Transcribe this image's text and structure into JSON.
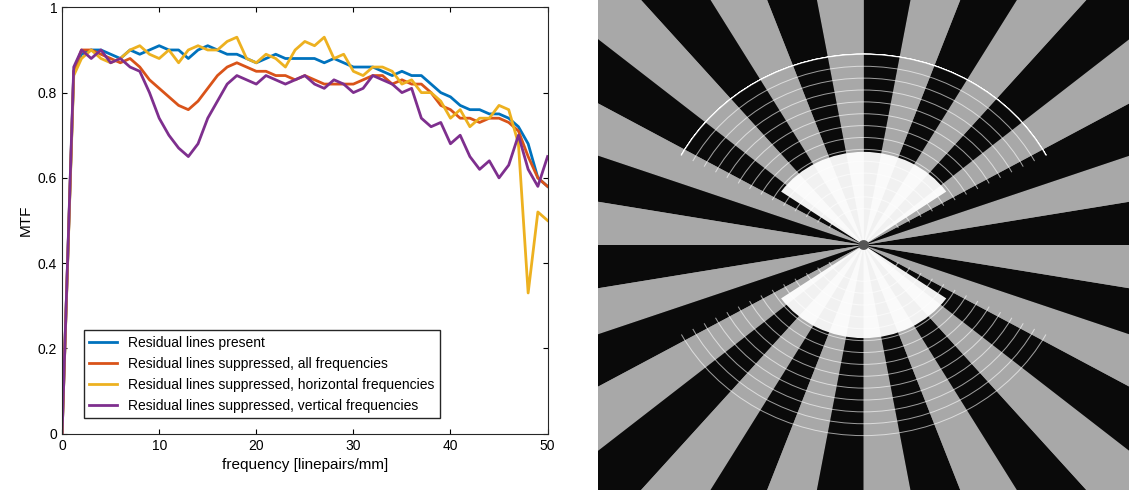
{
  "chart_data": {
    "type": "line",
    "xlabel": "frequency [linepairs/mm]",
    "ylabel": "MTF",
    "xlim": [
      0,
      50
    ],
    "ylim": [
      0,
      1
    ],
    "xticks": [
      0,
      10,
      20,
      30,
      40,
      50
    ],
    "yticks": [
      0,
      0.2,
      0.4,
      0.6,
      0.8,
      1
    ],
    "grid": false,
    "legend": "lower left",
    "x": [
      0,
      1.2,
      2,
      3,
      4,
      5,
      6,
      7,
      8,
      9,
      10,
      11,
      12,
      13,
      14,
      15,
      16,
      17,
      18,
      19,
      20,
      21,
      22,
      23,
      24,
      25,
      26,
      27,
      28,
      29,
      30,
      31,
      32,
      33,
      34,
      35,
      36,
      37,
      38,
      39,
      40,
      41,
      42,
      43,
      44,
      45,
      46,
      47,
      48,
      49,
      50
    ],
    "series": [
      {
        "name": "Residual lines present",
        "color": "#0072bd",
        "values": [
          0,
          0.85,
          0.89,
          0.9,
          0.9,
          0.89,
          0.88,
          0.9,
          0.89,
          0.9,
          0.91,
          0.9,
          0.9,
          0.88,
          0.9,
          0.91,
          0.9,
          0.89,
          0.89,
          0.88,
          0.87,
          0.88,
          0.89,
          0.88,
          0.88,
          0.88,
          0.88,
          0.87,
          0.88,
          0.87,
          0.86,
          0.86,
          0.86,
          0.85,
          0.84,
          0.85,
          0.84,
          0.84,
          0.82,
          0.8,
          0.79,
          0.77,
          0.76,
          0.76,
          0.75,
          0.75,
          0.74,
          0.72,
          0.68,
          0.6,
          0.58
        ]
      },
      {
        "name": "Residual lines suppressed, all frequencies",
        "color": "#d95319",
        "values": [
          0,
          0.85,
          0.9,
          0.9,
          0.89,
          0.88,
          0.87,
          0.88,
          0.86,
          0.83,
          0.81,
          0.79,
          0.77,
          0.76,
          0.78,
          0.81,
          0.84,
          0.86,
          0.87,
          0.86,
          0.85,
          0.85,
          0.84,
          0.84,
          0.83,
          0.84,
          0.83,
          0.82,
          0.82,
          0.82,
          0.82,
          0.83,
          0.84,
          0.84,
          0.82,
          0.83,
          0.82,
          0.82,
          0.8,
          0.77,
          0.76,
          0.74,
          0.74,
          0.73,
          0.74,
          0.74,
          0.73,
          0.71,
          0.65,
          0.6,
          0.58
        ]
      },
      {
        "name": "Residual lines suppressed, horizontal frequencies",
        "color": "#edb120",
        "values": [
          0,
          0.84,
          0.88,
          0.9,
          0.88,
          0.87,
          0.88,
          0.9,
          0.91,
          0.89,
          0.88,
          0.9,
          0.87,
          0.9,
          0.91,
          0.9,
          0.9,
          0.92,
          0.93,
          0.88,
          0.87,
          0.89,
          0.88,
          0.86,
          0.9,
          0.92,
          0.91,
          0.93,
          0.88,
          0.89,
          0.85,
          0.84,
          0.86,
          0.86,
          0.85,
          0.82,
          0.83,
          0.8,
          0.8,
          0.78,
          0.74,
          0.76,
          0.72,
          0.74,
          0.74,
          0.77,
          0.76,
          0.68,
          0.33,
          0.52,
          0.5
        ]
      },
      {
        "name": "Residual lines suppressed, vertical frequencies",
        "color": "#7e2f8e",
        "values": [
          0,
          0.86,
          0.9,
          0.88,
          0.9,
          0.87,
          0.88,
          0.86,
          0.85,
          0.8,
          0.74,
          0.7,
          0.67,
          0.65,
          0.68,
          0.74,
          0.78,
          0.82,
          0.84,
          0.83,
          0.82,
          0.84,
          0.83,
          0.82,
          0.83,
          0.84,
          0.82,
          0.81,
          0.83,
          0.82,
          0.8,
          0.81,
          0.84,
          0.83,
          0.82,
          0.8,
          0.81,
          0.74,
          0.72,
          0.73,
          0.68,
          0.7,
          0.65,
          0.62,
          0.64,
          0.6,
          0.63,
          0.7,
          0.62,
          0.58,
          0.65
        ]
      }
    ]
  }
}
